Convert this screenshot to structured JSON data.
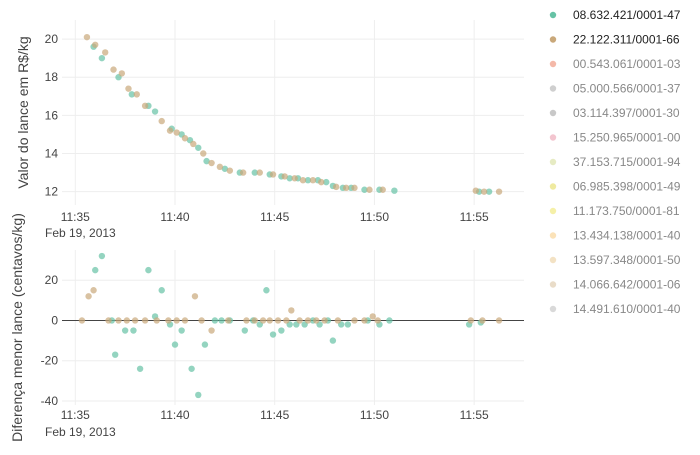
{
  "chart_data": [
    {
      "type": "scatter",
      "ylabel": "Valor do lance em R$/kg",
      "x_ticks": [
        "11:35",
        "11:40",
        "11:45",
        "11:50",
        "11:55"
      ],
      "x_date_label": "Feb 19, 2013",
      "xlim": [
        "11:34:20",
        "11:57:30"
      ],
      "ylim": [
        11.3,
        21.0
      ],
      "y_ticks": [
        12,
        14,
        16,
        18,
        20
      ],
      "grid": true,
      "series": [
        {
          "name": "08.632.421/0001-47",
          "points": [
            [
              "11:35:55",
              19.6
            ],
            [
              "11:36:20",
              19.0
            ],
            [
              "11:37:10",
              18.0
            ],
            [
              "11:37:50",
              17.1
            ],
            [
              "11:38:40",
              16.5
            ],
            [
              "11:39:00",
              16.2
            ],
            [
              "11:39:50",
              15.3
            ],
            [
              "11:40:20",
              15.0
            ],
            [
              "11:40:45",
              14.7
            ],
            [
              "11:41:10",
              14.3
            ],
            [
              "11:41:35",
              13.6
            ],
            [
              "11:42:30",
              13.2
            ],
            [
              "11:43:15",
              13.0
            ],
            [
              "11:44:00",
              13.0
            ],
            [
              "11:44:45",
              12.9
            ],
            [
              "11:45:20",
              12.8
            ],
            [
              "11:45:45",
              12.7
            ],
            [
              "11:46:10",
              12.7
            ],
            [
              "11:46:40",
              12.6
            ],
            [
              "11:47:10",
              12.6
            ],
            [
              "11:47:35",
              12.5
            ],
            [
              "11:47:55",
              12.3
            ],
            [
              "11:48:25",
              12.2
            ],
            [
              "11:48:50",
              12.2
            ],
            [
              "11:49:30",
              12.1
            ],
            [
              "11:50:15",
              12.1
            ],
            [
              "11:51:00",
              12.05
            ],
            [
              "11:55:15",
              12.0
            ],
            [
              "11:55:45",
              12.0
            ]
          ]
        },
        {
          "name": "22.122.311/0001-66",
          "points": [
            [
              "11:35:35",
              20.1
            ],
            [
              "11:36:00",
              19.7
            ],
            [
              "11:36:30",
              19.3
            ],
            [
              "11:36:55",
              18.4
            ],
            [
              "11:37:20",
              18.2
            ],
            [
              "11:37:40",
              17.4
            ],
            [
              "11:38:05",
              17.1
            ],
            [
              "11:38:30",
              16.5
            ],
            [
              "11:39:20",
              15.7
            ],
            [
              "11:39:45",
              15.2
            ],
            [
              "11:40:05",
              15.1
            ],
            [
              "11:40:30",
              14.8
            ],
            [
              "11:40:55",
              14.5
            ],
            [
              "11:41:25",
              14.0
            ],
            [
              "11:41:50",
              13.5
            ],
            [
              "11:42:15",
              13.3
            ],
            [
              "11:42:45",
              13.1
            ],
            [
              "11:43:25",
              13.0
            ],
            [
              "11:44:15",
              13.0
            ],
            [
              "11:44:55",
              12.9
            ],
            [
              "11:45:30",
              12.8
            ],
            [
              "11:46:00",
              12.7
            ],
            [
              "11:46:25",
              12.6
            ],
            [
              "11:46:55",
              12.6
            ],
            [
              "11:47:20",
              12.5
            ],
            [
              "11:48:05",
              12.25
            ],
            [
              "11:48:35",
              12.2
            ],
            [
              "11:49:00",
              12.2
            ],
            [
              "11:49:45",
              12.1
            ],
            [
              "11:50:25",
              12.1
            ],
            [
              "11:55:05",
              12.05
            ],
            [
              "11:55:30",
              12.0
            ],
            [
              "11:56:15",
              12.0
            ]
          ]
        },
        {
          "name": "00.543.061/0001-03",
          "points": []
        },
        {
          "name": "05.000.566/0001-37",
          "points": []
        },
        {
          "name": "03.114.397/0001-30",
          "points": []
        },
        {
          "name": "15.250.965/0001-00",
          "points": []
        },
        {
          "name": "37.153.715/0001-94",
          "points": []
        },
        {
          "name": "06.985.398/0001-49",
          "points": []
        },
        {
          "name": "11.173.750/0001-81",
          "points": []
        },
        {
          "name": "13.434.138/0001-40",
          "points": []
        },
        {
          "name": "13.597.348/0001-50",
          "points": []
        },
        {
          "name": "14.066.642/0001-06",
          "points": []
        },
        {
          "name": "14.491.610/0001-40",
          "points": []
        }
      ]
    },
    {
      "type": "scatter",
      "ylabel": "Diferença menor lance (centavos/kg)",
      "x_ticks": [
        "11:35",
        "11:40",
        "11:45",
        "11:50",
        "11:55"
      ],
      "x_date_label": "Feb 19, 2013",
      "xlim": [
        "11:34:20",
        "11:57:30"
      ],
      "ylim": [
        -42,
        35
      ],
      "y_ticks": [
        -40,
        -20,
        0,
        20
      ],
      "zero_line": true,
      "grid": true,
      "series": [
        {
          "name": "08.632.421/0001-47",
          "points": [
            [
              "11:36:00",
              25
            ],
            [
              "11:36:20",
              32
            ],
            [
              "11:36:50",
              0
            ],
            [
              "11:37:00",
              -17
            ],
            [
              "11:37:30",
              -5
            ],
            [
              "11:37:55",
              -5
            ],
            [
              "11:38:15",
              -24
            ],
            [
              "11:38:40",
              25
            ],
            [
              "11:39:00",
              2
            ],
            [
              "11:39:20",
              15
            ],
            [
              "11:39:45",
              -2
            ],
            [
              "11:40:00",
              -12
            ],
            [
              "11:40:20",
              -5
            ],
            [
              "11:40:50",
              -24
            ],
            [
              "11:41:10",
              -37
            ],
            [
              "11:41:30",
              -12
            ],
            [
              "11:42:00",
              0
            ],
            [
              "11:42:20",
              0
            ],
            [
              "11:42:45",
              0
            ],
            [
              "11:43:30",
              -5
            ],
            [
              "11:43:55",
              0
            ],
            [
              "11:44:15",
              -2
            ],
            [
              "11:44:35",
              15
            ],
            [
              "11:44:55",
              -7
            ],
            [
              "11:45:20",
              -5
            ],
            [
              "11:45:45",
              -2
            ],
            [
              "11:46:05",
              -2
            ],
            [
              "11:46:30",
              -2
            ],
            [
              "11:46:55",
              0
            ],
            [
              "11:47:15",
              -2
            ],
            [
              "11:47:40",
              0
            ],
            [
              "11:47:55",
              -10
            ],
            [
              "11:48:20",
              -2
            ],
            [
              "11:48:40",
              -2
            ],
            [
              "11:49:40",
              0
            ],
            [
              "11:50:15",
              -2
            ],
            [
              "11:50:45",
              0
            ],
            [
              "11:54:45",
              -2
            ],
            [
              "11:55:20",
              -1
            ]
          ]
        },
        {
          "name": "22.122.311/0001-66",
          "points": [
            [
              "11:35:20",
              0
            ],
            [
              "11:35:40",
              12
            ],
            [
              "11:35:55",
              15
            ],
            [
              "11:36:40",
              0
            ],
            [
              "11:37:10",
              0
            ],
            [
              "11:37:35",
              0
            ],
            [
              "11:38:00",
              0
            ],
            [
              "11:38:30",
              0
            ],
            [
              "11:39:05",
              0
            ],
            [
              "11:39:40",
              0
            ],
            [
              "11:40:05",
              0
            ],
            [
              "11:40:30",
              0
            ],
            [
              "11:41:00",
              12
            ],
            [
              "11:41:20",
              0
            ],
            [
              "11:41:50",
              -5
            ],
            [
              "11:42:40",
              0
            ],
            [
              "11:43:35",
              0
            ],
            [
              "11:44:00",
              0
            ],
            [
              "11:44:25",
              0
            ],
            [
              "11:44:45",
              0
            ],
            [
              "11:45:10",
              0
            ],
            [
              "11:45:35",
              0
            ],
            [
              "11:45:50",
              5
            ],
            [
              "11:46:15",
              0
            ],
            [
              "11:46:40",
              0
            ],
            [
              "11:47:05",
              0
            ],
            [
              "11:47:30",
              0
            ],
            [
              "11:48:10",
              0
            ],
            [
              "11:49:00",
              0
            ],
            [
              "11:49:30",
              0
            ],
            [
              "11:49:55",
              2
            ],
            [
              "11:50:10",
              0
            ],
            [
              "11:54:50",
              0
            ],
            [
              "11:55:25",
              0
            ],
            [
              "11:56:15",
              0
            ]
          ]
        }
      ]
    }
  ],
  "legend": {
    "placement": "right",
    "colors": [
      "#66c2a5",
      "#c9a87a",
      "#f4b8a8",
      "#cfcfcf",
      "#c8c8c8",
      "#f3c5cf",
      "#e6ebc3",
      "#efeaa0",
      "#f5f0a8",
      "#fbe2b8",
      "#f3e2c4",
      "#e9dcc8",
      "#d9d9d9"
    ],
    "text_colors": [
      "#222222",
      "#222222",
      "#888888",
      "#888888",
      "#888888",
      "#888888",
      "#888888",
      "#888888",
      "#888888",
      "#888888",
      "#888888",
      "#888888",
      "#888888"
    ]
  },
  "colors": {
    "series_1": "#66c2a5",
    "series_2": "#c9a87a",
    "grid": "#eeeeee",
    "zero_line": "#444444"
  }
}
